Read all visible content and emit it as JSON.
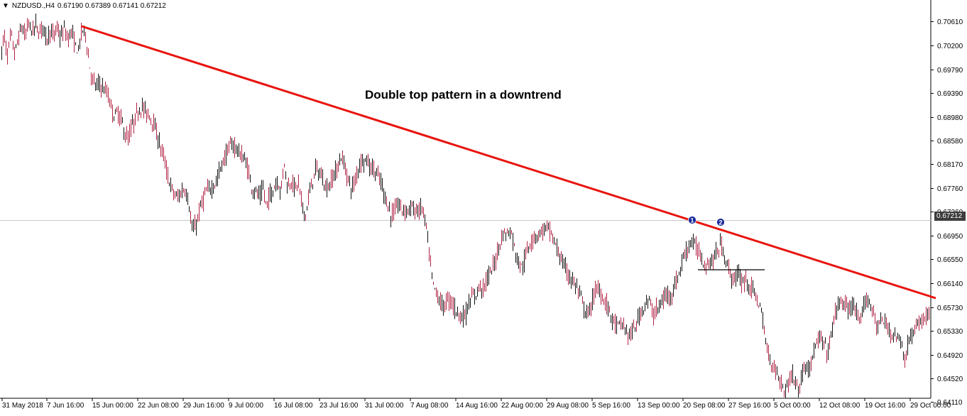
{
  "header": {
    "symbol": "NZDUSD.,H4",
    "ohlc": "0.67190 0.67389 0.67141 0.67212"
  },
  "annotation": "Double top pattern in a downtrend",
  "markers": [
    "1",
    "2"
  ],
  "current_price": "0.67212",
  "colors": {
    "trendline": "#e8140e",
    "bull": "#111111",
    "bear": "#b22244",
    "marker": "#1a2b9a",
    "price_tag_bg": "#3c3c3c"
  },
  "chart_data": {
    "type": "line",
    "title": "",
    "xlabel": "",
    "ylabel": "",
    "ylim": [
      0.6403,
      0.7083
    ],
    "yticks": [
      "0.70610",
      "0.70200",
      "0.69790",
      "0.69390",
      "0.68980",
      "0.68580",
      "0.68170",
      "0.67760",
      "0.67360",
      "0.66950",
      "0.66550",
      "0.66140",
      "0.65730",
      "0.65330",
      "0.64920",
      "0.64520",
      "0.64110"
    ],
    "xticks": [
      "31 May 2018",
      "7 Jun 16:00",
      "15 Jun 00:00",
      "22 Jun 08:00",
      "29 Jun 16:00",
      "9 Jul 00:00",
      "16 Jul 08:00",
      "23 Jul 16:00",
      "31 Jul 00:00",
      "7 Aug 08:00",
      "14 Aug 16:00",
      "22 Aug 00:00",
      "29 Aug 08:00",
      "5 Sep 16:00",
      "13 Sep 00:00",
      "20 Sep 08:00",
      "27 Sep 16:00",
      "5 Oct 00:00",
      "12 Oct 08:00",
      "19 Oct 16:00",
      "29 Oct 00:00"
    ],
    "series": [
      {
        "values": [
          [
            0,
            0.6985
          ],
          [
            5,
            0.704
          ],
          [
            10,
            0.7002
          ],
          [
            15,
            0.704
          ],
          [
            20,
            0.7006
          ],
          [
            25,
            0.7028
          ],
          [
            30,
            0.7052
          ],
          [
            35,
            0.7035
          ],
          [
            40,
            0.7058
          ],
          [
            45,
            0.7042
          ],
          [
            50,
            0.7055
          ],
          [
            55,
            0.704
          ],
          [
            60,
            0.7055
          ],
          [
            65,
            0.703
          ],
          [
            70,
            0.7045
          ],
          [
            75,
            0.7035
          ],
          [
            80,
            0.705
          ],
          [
            85,
            0.7032
          ],
          [
            90,
            0.7048
          ],
          [
            95,
            0.703
          ],
          [
            100,
            0.7045
          ],
          [
            105,
            0.702
          ],
          [
            110,
            0.701
          ],
          [
            115,
            0.7048
          ],
          [
            120,
            0.704
          ],
          [
            125,
            0.699
          ],
          [
            130,
            0.696
          ],
          [
            135,
            0.695
          ],
          [
            140,
            0.6955
          ],
          [
            145,
            0.6945
          ],
          [
            150,
            0.694
          ],
          [
            155,
            0.692
          ],
          [
            160,
            0.69
          ],
          [
            165,
            0.6905
          ],
          [
            170,
            0.6895
          ],
          [
            175,
            0.687
          ],
          [
            180,
            0.686
          ],
          [
            185,
            0.688
          ],
          [
            190,
            0.6895
          ],
          [
            195,
            0.691
          ],
          [
            200,
            0.6915
          ],
          [
            205,
            0.6905
          ],
          [
            210,
            0.69
          ],
          [
            215,
            0.689
          ],
          [
            220,
            0.687
          ],
          [
            225,
            0.685
          ],
          [
            230,
            0.683
          ],
          [
            235,
            0.68
          ],
          [
            240,
            0.678
          ],
          [
            245,
            0.6765
          ],
          [
            250,
            0.676
          ],
          [
            255,
            0.677
          ],
          [
            260,
            0.6775
          ],
          [
            265,
            0.6755
          ],
          [
            270,
            0.6705
          ],
          [
            275,
            0.671
          ],
          [
            280,
            0.6735
          ],
          [
            285,
            0.6755
          ],
          [
            290,
            0.677
          ],
          [
            295,
            0.6775
          ],
          [
            300,
            0.678
          ],
          [
            305,
            0.679
          ],
          [
            310,
            0.681
          ],
          [
            315,
            0.6825
          ],
          [
            320,
            0.684
          ],
          [
            325,
            0.685
          ],
          [
            330,
            0.6848
          ],
          [
            335,
            0.684
          ],
          [
            340,
            0.683
          ],
          [
            345,
            0.6825
          ],
          [
            350,
            0.68
          ],
          [
            355,
            0.6775
          ],
          [
            360,
            0.677
          ],
          [
            365,
            0.676
          ],
          [
            370,
            0.6775
          ],
          [
            375,
            0.6745
          ],
          [
            380,
            0.6765
          ],
          [
            385,
            0.6775
          ],
          [
            390,
            0.679
          ],
          [
            395,
            0.677
          ],
          [
            400,
            0.682
          ],
          [
            405,
            0.6775
          ],
          [
            410,
            0.679
          ],
          [
            415,
            0.6775
          ],
          [
            420,
            0.6785
          ],
          [
            425,
            0.6745
          ],
          [
            430,
            0.673
          ],
          [
            435,
            0.6765
          ],
          [
            440,
            0.679
          ],
          [
            445,
            0.681
          ],
          [
            450,
            0.68
          ],
          [
            455,
            0.679
          ],
          [
            460,
            0.6775
          ],
          [
            465,
            0.6785
          ],
          [
            470,
            0.68
          ],
          [
            475,
            0.681
          ],
          [
            480,
            0.683
          ],
          [
            485,
            0.6815
          ],
          [
            490,
            0.679
          ],
          [
            495,
            0.6775
          ],
          [
            500,
            0.679
          ],
          [
            505,
            0.6815
          ],
          [
            510,
            0.6825
          ],
          [
            515,
            0.6825
          ],
          [
            520,
            0.6815
          ],
          [
            525,
            0.681
          ],
          [
            530,
            0.68
          ],
          [
            535,
            0.679
          ],
          [
            540,
            0.677
          ],
          [
            545,
            0.675
          ],
          [
            550,
            0.673
          ],
          [
            555,
            0.6735
          ],
          [
            560,
            0.675
          ],
          [
            565,
            0.674
          ],
          [
            570,
            0.6738
          ],
          [
            575,
            0.674
          ],
          [
            580,
            0.6745
          ],
          [
            585,
            0.6735
          ],
          [
            590,
            0.674
          ],
          [
            595,
            0.674
          ],
          [
            600,
            0.671
          ],
          [
            605,
            0.665
          ],
          [
            610,
            0.661
          ],
          [
            615,
            0.6595
          ],
          [
            620,
            0.658
          ],
          [
            625,
            0.6575
          ],
          [
            630,
            0.6585
          ],
          [
            635,
            0.6585
          ],
          [
            640,
            0.657
          ],
          [
            645,
            0.6565
          ],
          [
            650,
            0.6555
          ],
          [
            655,
            0.656
          ],
          [
            660,
            0.658
          ],
          [
            665,
            0.659
          ],
          [
            670,
            0.6595
          ],
          [
            675,
            0.661
          ],
          [
            680,
            0.6605
          ],
          [
            685,
            0.662
          ],
          [
            690,
            0.663
          ],
          [
            695,
            0.6645
          ],
          [
            700,
            0.6665
          ],
          [
            705,
            0.669
          ],
          [
            710,
            0.67
          ],
          [
            715,
            0.67
          ],
          [
            720,
            0.67
          ],
          [
            725,
            0.667
          ],
          [
            730,
            0.665
          ],
          [
            735,
            0.664
          ],
          [
            740,
            0.666
          ],
          [
            745,
            0.668
          ],
          [
            750,
            0.669
          ],
          [
            755,
            0.6695
          ],
          [
            760,
            0.67
          ],
          [
            765,
            0.6705
          ],
          [
            770,
            0.671
          ],
          [
            775,
            0.67
          ],
          [
            780,
            0.6685
          ],
          [
            785,
            0.667
          ],
          [
            790,
            0.6655
          ],
          [
            795,
            0.664
          ],
          [
            800,
            0.663
          ],
          [
            805,
            0.662
          ],
          [
            810,
            0.661
          ],
          [
            815,
            0.66
          ],
          [
            820,
            0.658
          ],
          [
            825,
            0.656
          ],
          [
            830,
            0.6565
          ],
          [
            835,
            0.659
          ],
          [
            840,
            0.6605
          ],
          [
            845,
            0.66
          ],
          [
            850,
            0.6585
          ],
          [
            855,
            0.6575
          ],
          [
            860,
            0.656
          ],
          [
            865,
            0.6545
          ],
          [
            870,
            0.654
          ],
          [
            875,
            0.6545
          ],
          [
            880,
            0.6535
          ],
          [
            885,
            0.6525
          ],
          [
            890,
            0.653
          ],
          [
            895,
            0.654
          ],
          [
            900,
            0.656
          ],
          [
            905,
            0.657
          ],
          [
            910,
            0.6585
          ],
          [
            915,
            0.658
          ],
          [
            920,
            0.656
          ],
          [
            925,
            0.657
          ],
          [
            930,
            0.6575
          ],
          [
            935,
            0.659
          ],
          [
            940,
            0.6595
          ],
          [
            945,
            0.6595
          ],
          [
            950,
            0.661
          ],
          [
            955,
            0.6625
          ],
          [
            960,
            0.665
          ],
          [
            965,
            0.6665
          ],
          [
            970,
            0.668
          ],
          [
            975,
            0.6685
          ],
          [
            980,
            0.6675
          ],
          [
            985,
            0.6665
          ],
          [
            990,
            0.665
          ],
          [
            995,
            0.6645
          ],
          [
            1000,
            0.665
          ],
          [
            1005,
            0.6655
          ],
          [
            1010,
            0.667
          ],
          [
            1015,
            0.668
          ],
          [
            1020,
            0.666
          ],
          [
            1025,
            0.664
          ],
          [
            1030,
            0.6625
          ],
          [
            1035,
            0.662
          ],
          [
            1040,
            0.663
          ],
          [
            1045,
            0.6615
          ],
          [
            1050,
            0.662
          ],
          [
            1055,
            0.661
          ],
          [
            1060,
            0.66
          ],
          [
            1065,
            0.659
          ],
          [
            1070,
            0.6575
          ],
          [
            1075,
            0.654
          ],
          [
            1080,
            0.65
          ],
          [
            1085,
            0.648
          ],
          [
            1090,
            0.647
          ],
          [
            1095,
            0.646
          ],
          [
            1100,
            0.644
          ],
          [
            1105,
            0.643
          ],
          [
            1110,
            0.6445
          ],
          [
            1115,
            0.646
          ],
          [
            1120,
            0.6445
          ],
          [
            1125,
            0.643
          ],
          [
            1130,
            0.646
          ],
          [
            1135,
            0.648
          ],
          [
            1140,
            0.647
          ],
          [
            1145,
            0.649
          ],
          [
            1150,
            0.651
          ],
          [
            1155,
            0.652
          ],
          [
            1160,
            0.651
          ],
          [
            1165,
            0.6495
          ],
          [
            1170,
            0.652
          ],
          [
            1175,
            0.656
          ],
          [
            1180,
            0.6575
          ],
          [
            1185,
            0.6585
          ],
          [
            1190,
            0.6575
          ],
          [
            1195,
            0.6565
          ],
          [
            1200,
            0.658
          ],
          [
            1205,
            0.6565
          ],
          [
            1210,
            0.654
          ],
          [
            1215,
            0.657
          ],
          [
            1220,
            0.659
          ],
          [
            1225,
            0.658
          ],
          [
            1230,
            0.656
          ],
          [
            1235,
            0.654
          ],
          [
            1240,
            0.655
          ],
          [
            1245,
            0.6545
          ],
          [
            1250,
            0.654
          ],
          [
            1255,
            0.653
          ],
          [
            1260,
            0.6525
          ],
          [
            1265,
            0.652
          ],
          [
            1270,
            0.651
          ],
          [
            1275,
            0.648
          ],
          [
            1280,
            0.652
          ],
          [
            1285,
            0.653
          ],
          [
            1290,
            0.6535
          ],
          [
            1295,
            0.6545
          ],
          [
            1300,
            0.6555
          ],
          [
            1305,
            0.656
          ],
          [
            1310,
            0.655
          ],
          [
            1315,
            0.653
          ]
        ]
      }
    ]
  }
}
